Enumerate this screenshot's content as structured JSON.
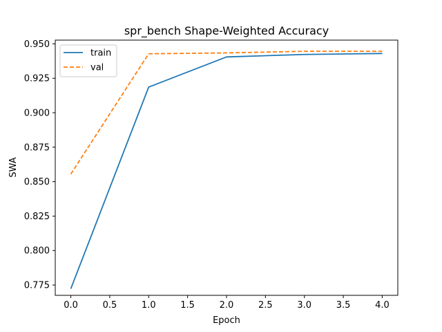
{
  "chart_data": {
    "type": "line",
    "title": "spr_bench Shape-Weighted Accuracy",
    "xlabel": "Epoch",
    "ylabel": "SWA",
    "xlim": [
      -0.2,
      4.2
    ],
    "ylim": [
      0.7675,
      0.9527
    ],
    "xticks": [
      0.0,
      0.5,
      1.0,
      1.5,
      2.0,
      2.5,
      3.0,
      3.5,
      4.0
    ],
    "xtick_labels": [
      "0.0",
      "0.5",
      "1.0",
      "1.5",
      "2.0",
      "2.5",
      "3.0",
      "3.5",
      "4.0"
    ],
    "yticks": [
      0.775,
      0.8,
      0.825,
      0.85,
      0.875,
      0.9,
      0.925,
      0.95
    ],
    "ytick_labels": [
      "0.775",
      "0.800",
      "0.825",
      "0.850",
      "0.875",
      "0.900",
      "0.925",
      "0.950"
    ],
    "x": [
      0,
      1,
      2,
      3,
      4
    ],
    "series": [
      {
        "name": "train",
        "values": [
          0.7723,
          0.9186,
          0.9405,
          0.9423,
          0.943
        ],
        "color": "#1f77b4",
        "dash": "solid"
      },
      {
        "name": "val",
        "values": [
          0.8555,
          0.9428,
          0.9434,
          0.9446,
          0.9446
        ],
        "color": "#ff7f0e",
        "dash": "dashed"
      }
    ],
    "grid": false,
    "legend_position": "upper left"
  }
}
